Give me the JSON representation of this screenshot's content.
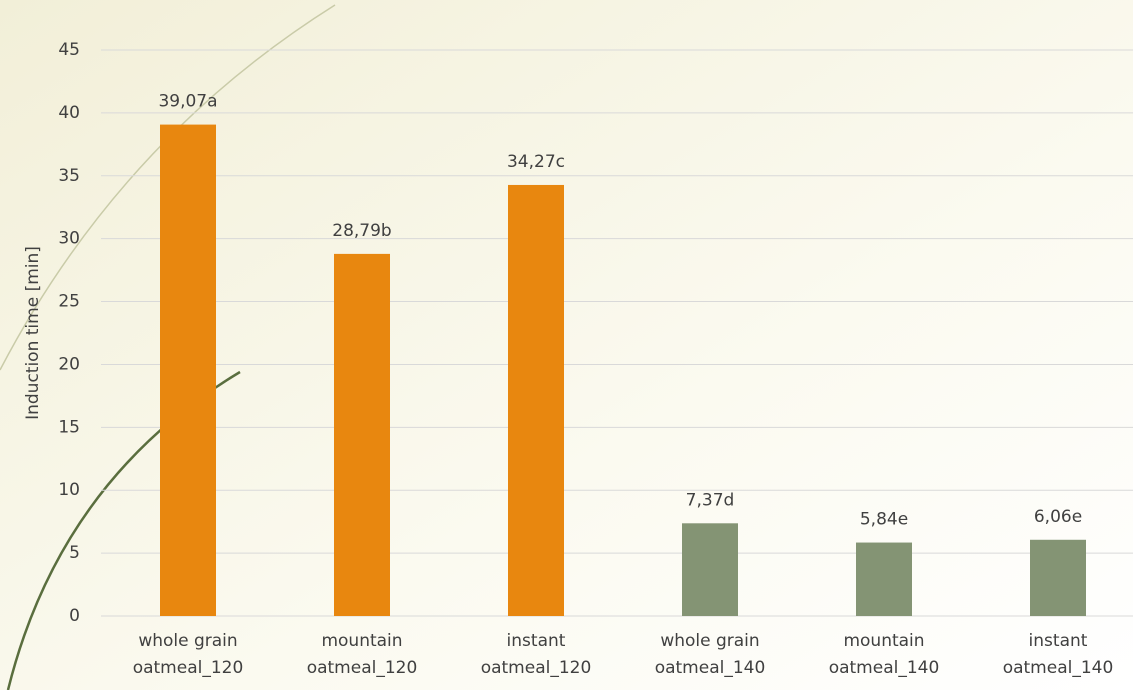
{
  "chart_data": {
    "type": "bar",
    "y_label": "Induction time [min]",
    "categories": [
      [
        "whole grain",
        "oatmeal_120"
      ],
      [
        "mountain",
        "oatmeal_120"
      ],
      [
        "instant",
        "oatmeal_120"
      ],
      [
        "whole grain",
        "oatmeal_140"
      ],
      [
        "mountain",
        "oatmeal_140"
      ],
      [
        "instant",
        "oatmeal_140"
      ]
    ],
    "values": [
      39.07,
      28.79,
      34.27,
      7.37,
      5.84,
      6.06
    ],
    "value_labels": [
      "39,07a",
      "28,79b",
      "34,27c",
      "7,37d",
      "5,84e",
      "6,06e"
    ],
    "colors": [
      "#e8870f",
      "#e8870f",
      "#e8870f",
      "#849474",
      "#849474",
      "#849474"
    ],
    "ylim": [
      0,
      45
    ],
    "yticks": [
      0,
      5,
      10,
      15,
      20,
      25,
      30,
      35,
      40,
      45
    ],
    "grid": true
  }
}
